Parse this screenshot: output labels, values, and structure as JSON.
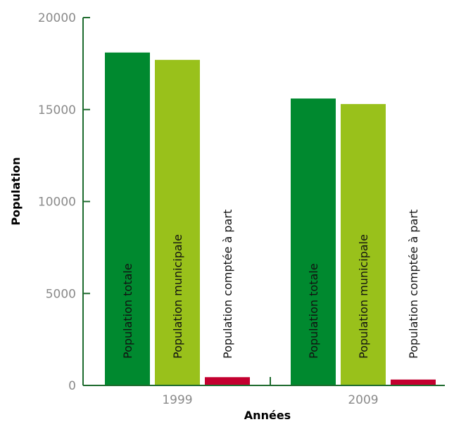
{
  "chart_data": {
    "type": "bar",
    "xlabel": "Années",
    "ylabel": "Population",
    "ylim": [
      0,
      20000
    ],
    "yticks": [
      "0",
      "5000",
      "10000",
      "15000",
      "20000"
    ],
    "categories": [
      "1999",
      "2009"
    ],
    "series": [
      {
        "name": "Population totale",
        "color": "#00892f",
        "values": [
          18100,
          15600
        ]
      },
      {
        "name": "Population municipale",
        "color": "#99c11b",
        "values": [
          17700,
          15300
        ]
      },
      {
        "name": "Population comptée à part",
        "color": "#c3002f",
        "values": [
          450,
          320
        ]
      }
    ],
    "legend": "in-bar vertical labels",
    "grid": false
  }
}
